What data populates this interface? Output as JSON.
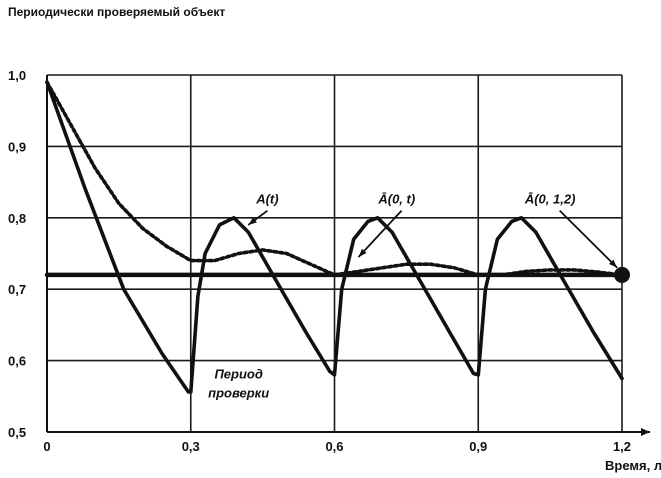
{
  "chart_data": {
    "type": "line",
    "title": "Периодически проверяемый объект",
    "xlabel": "Время, лет",
    "ylabel": "",
    "xlim": [
      0,
      1.2
    ],
    "ylim": [
      0.5,
      1.0
    ],
    "x_ticks": [
      0,
      0.3,
      0.6,
      0.9,
      1.2
    ],
    "x_tick_labels": [
      "0",
      "0,3",
      "0,6",
      "0,9",
      "1,2"
    ],
    "y_ticks": [
      0.5,
      0.6,
      0.7,
      0.8,
      0.9,
      1.0
    ],
    "y_tick_labels": [
      "0,5",
      "0,6",
      "0,7",
      "0,8",
      "0,9",
      "1,0"
    ],
    "grid": true,
    "legend": "none",
    "series": [
      {
        "name": "A(t)",
        "style": "solid",
        "color": "#111111",
        "points": [
          [
            0,
            0.99
          ],
          [
            0.08,
            0.84
          ],
          [
            0.16,
            0.7
          ],
          [
            0.24,
            0.61
          ],
          [
            0.295,
            0.556
          ],
          [
            0.3,
            0.556
          ],
          [
            0.315,
            0.69
          ],
          [
            0.33,
            0.75
          ],
          [
            0.36,
            0.79
          ],
          [
            0.39,
            0.8
          ],
          [
            0.42,
            0.78
          ],
          [
            0.48,
            0.71
          ],
          [
            0.54,
            0.64
          ],
          [
            0.59,
            0.585
          ],
          [
            0.6,
            0.58
          ],
          [
            0.615,
            0.7
          ],
          [
            0.64,
            0.77
          ],
          [
            0.67,
            0.795
          ],
          [
            0.69,
            0.8
          ],
          [
            0.72,
            0.78
          ],
          [
            0.78,
            0.71
          ],
          [
            0.84,
            0.64
          ],
          [
            0.89,
            0.582
          ],
          [
            0.9,
            0.58
          ],
          [
            0.915,
            0.7
          ],
          [
            0.94,
            0.77
          ],
          [
            0.97,
            0.795
          ],
          [
            0.99,
            0.8
          ],
          [
            1.02,
            0.78
          ],
          [
            1.08,
            0.71
          ],
          [
            1.14,
            0.64
          ],
          [
            1.2,
            0.575
          ]
        ]
      },
      {
        "name": "Ā(0, t)",
        "style": "dotted",
        "color": "#111111",
        "points": [
          [
            0,
            0.99
          ],
          [
            0.05,
            0.93
          ],
          [
            0.1,
            0.87
          ],
          [
            0.15,
            0.82
          ],
          [
            0.2,
            0.785
          ],
          [
            0.25,
            0.76
          ],
          [
            0.3,
            0.74
          ],
          [
            0.35,
            0.74
          ],
          [
            0.4,
            0.75
          ],
          [
            0.45,
            0.755
          ],
          [
            0.5,
            0.75
          ],
          [
            0.55,
            0.735
          ],
          [
            0.6,
            0.72
          ],
          [
            0.65,
            0.725
          ],
          [
            0.7,
            0.73
          ],
          [
            0.75,
            0.735
          ],
          [
            0.8,
            0.735
          ],
          [
            0.85,
            0.73
          ],
          [
            0.9,
            0.72
          ],
          [
            0.95,
            0.72
          ],
          [
            1.0,
            0.725
          ],
          [
            1.05,
            0.727
          ],
          [
            1.1,
            0.727
          ],
          [
            1.15,
            0.724
          ],
          [
            1.2,
            0.72
          ]
        ]
      },
      {
        "name": "Ā(0, 1,2)",
        "style": "thick",
        "color": "#111111",
        "points": [
          [
            0,
            0.72
          ],
          [
            1.2,
            0.72
          ]
        ]
      }
    ],
    "marker": {
      "x": 1.2,
      "y": 0.72
    },
    "annotations": [
      {
        "text": "A(t)",
        "x": 0.46,
        "y": 0.82
      },
      {
        "text": "Ā(0, t)",
        "x": 0.73,
        "y": 0.82
      },
      {
        "text": "Ā(0, 1,2)",
        "x": 1.05,
        "y": 0.82
      },
      {
        "text": "Период",
        "x": 0.4,
        "y": 0.575
      },
      {
        "text": "проверки",
        "x": 0.4,
        "y": 0.548
      }
    ]
  }
}
